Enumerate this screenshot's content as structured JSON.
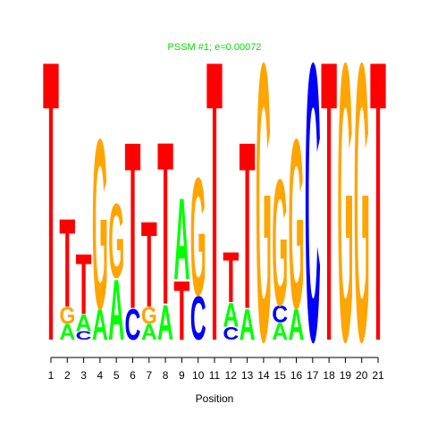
{
  "chart_data": {
    "type": "logo",
    "title": "PSSM #1; e=0.00072",
    "title_color": "#00dd00",
    "xlabel": "Position",
    "x": [
      1,
      2,
      3,
      4,
      5,
      6,
      7,
      8,
      9,
      10,
      11,
      12,
      13,
      14,
      15,
      16,
      17,
      18,
      19,
      20,
      21
    ],
    "xlim": [
      0.4,
      21.6
    ],
    "xticks": [
      1,
      2,
      3,
      4,
      5,
      6,
      7,
      8,
      9,
      10,
      11,
      12,
      13,
      14,
      15,
      16,
      17,
      18,
      19,
      20,
      21
    ],
    "ylim": [
      0,
      2
    ],
    "colors": {
      "A": "#00ff00",
      "C": "#0000ff",
      "G": "#ffa500",
      "T": "#ff0000"
    },
    "stacks": [
      [
        {
          "letter": "T",
          "value": 2.0
        }
      ],
      [
        {
          "letter": "A",
          "value": 0.11
        },
        {
          "letter": "G",
          "value": 0.12
        },
        {
          "letter": "T",
          "value": 0.63
        }
      ],
      [
        {
          "letter": "C",
          "value": 0.06
        },
        {
          "letter": "A",
          "value": 0.12
        },
        {
          "letter": "T",
          "value": 0.43
        }
      ],
      [
        {
          "letter": "A",
          "value": 0.22
        },
        {
          "letter": "G",
          "value": 1.21
        }
      ],
      [
        {
          "letter": "A",
          "value": 0.43
        },
        {
          "letter": "G",
          "value": 0.53
        }
      ],
      [
        {
          "letter": "C",
          "value": 0.22
        },
        {
          "letter": "T",
          "value": 1.19
        }
      ],
      [
        {
          "letter": "A",
          "value": 0.11
        },
        {
          "letter": "G",
          "value": 0.12
        },
        {
          "letter": "T",
          "value": 0.61
        }
      ],
      [
        {
          "letter": "A",
          "value": 0.25
        },
        {
          "letter": "T",
          "value": 1.16
        }
      ],
      [
        {
          "letter": "T",
          "value": 0.42
        },
        {
          "letter": "A",
          "value": 0.58
        }
      ],
      [
        {
          "letter": "C",
          "value": 0.31
        },
        {
          "letter": "G",
          "value": 0.84
        }
      ],
      [
        {
          "letter": "T",
          "value": 2.0
        }
      ],
      [
        {
          "letter": "C",
          "value": 0.09
        },
        {
          "letter": "A",
          "value": 0.17
        },
        {
          "letter": "T",
          "value": 0.36
        }
      ],
      [
        {
          "letter": "A",
          "value": 0.22
        },
        {
          "letter": "T",
          "value": 1.19
        }
      ],
      [
        {
          "letter": "G",
          "value": 1.98
        }
      ],
      [
        {
          "letter": "A",
          "value": 0.12
        },
        {
          "letter": "C",
          "value": 0.12
        },
        {
          "letter": "G",
          "value": 0.9
        }
      ],
      [
        {
          "letter": "A",
          "value": 0.22
        },
        {
          "letter": "G",
          "value": 1.21
        }
      ],
      [
        {
          "letter": "C",
          "value": 1.98
        }
      ],
      [
        {
          "letter": "T",
          "value": 2.0
        }
      ],
      [
        {
          "letter": "G",
          "value": 1.98
        }
      ],
      [
        {
          "letter": "G",
          "value": 1.98
        }
      ],
      [
        {
          "letter": "T",
          "value": 2.0
        }
      ]
    ]
  }
}
